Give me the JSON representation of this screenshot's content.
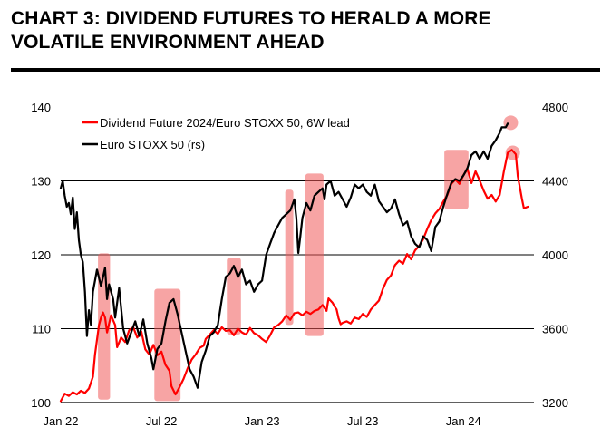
{
  "header": {
    "title_line1": "CHART 3: DIVIDEND FUTURES TO HERALD A MORE",
    "title_line2": "VOLATILE ENVIRONMENT AHEAD"
  },
  "chart_data": {
    "type": "line",
    "title": "CHART 3: DIVIDEND FUTURES TO HERALD A MORE VOLATILE ENVIRONMENT AHEAD",
    "x_tick_labels": [
      "Jan 22",
      "Jul 22",
      "Jan 23",
      "Jul 23",
      "Jan 24"
    ],
    "x_tick_dates": [
      2022.0,
      2022.5,
      2023.0,
      2023.5,
      2024.0
    ],
    "xlim": [
      2022.0,
      2024.35
    ],
    "left_axis": {
      "ylim": [
        100,
        140
      ],
      "ticks": [
        100,
        110,
        120,
        130,
        140
      ]
    },
    "right_axis": {
      "ylim": [
        3200,
        4800
      ],
      "ticks": [
        3200,
        3600,
        4000,
        4400,
        4800
      ]
    },
    "grid": "horizontal",
    "legend_position": "top-left",
    "series": [
      {
        "name": "Dividend Future 2024/Euro STOXX 50, 6W lead",
        "axis": "left",
        "color": "#ff0000",
        "points": [
          [
            2022.0,
            100.2
          ],
          [
            2022.02,
            101.2
          ],
          [
            2022.04,
            100.9
          ],
          [
            2022.06,
            101.4
          ],
          [
            2022.08,
            101.1
          ],
          [
            2022.1,
            101.6
          ],
          [
            2022.12,
            101.3
          ],
          [
            2022.14,
            101.9
          ],
          [
            2022.16,
            103.5
          ],
          [
            2022.17,
            106.5
          ],
          [
            2022.19,
            110.5
          ],
          [
            2022.2,
            111.5
          ],
          [
            2022.21,
            112.2
          ],
          [
            2022.22,
            111.5
          ],
          [
            2022.23,
            109.5
          ],
          [
            2022.25,
            111.8
          ],
          [
            2022.27,
            110.5
          ],
          [
            2022.28,
            107.5
          ],
          [
            2022.3,
            108.8
          ],
          [
            2022.32,
            108.2
          ],
          [
            2022.34,
            109.8
          ],
          [
            2022.36,
            110.2
          ],
          [
            2022.38,
            108.8
          ],
          [
            2022.4,
            109.6
          ],
          [
            2022.42,
            107.2
          ],
          [
            2022.44,
            106.5
          ],
          [
            2022.46,
            107.8
          ],
          [
            2022.48,
            106.4
          ],
          [
            2022.5,
            106.9
          ],
          [
            2022.52,
            105.1
          ],
          [
            2022.54,
            104.3
          ],
          [
            2022.55,
            102.2
          ],
          [
            2022.57,
            101.1
          ],
          [
            2022.59,
            102.1
          ],
          [
            2022.61,
            103.2
          ],
          [
            2022.63,
            104.6
          ],
          [
            2022.65,
            105.8
          ],
          [
            2022.67,
            106.5
          ],
          [
            2022.69,
            107.4
          ],
          [
            2022.71,
            107.7
          ],
          [
            2022.72,
            108.6
          ],
          [
            2022.74,
            109.2
          ],
          [
            2022.76,
            109.8
          ],
          [
            2022.78,
            109.3
          ],
          [
            2022.8,
            110.2
          ],
          [
            2022.82,
            109.7
          ],
          [
            2022.84,
            109.8
          ],
          [
            2022.86,
            109.1
          ],
          [
            2022.88,
            110.0
          ],
          [
            2022.9,
            109.5
          ],
          [
            2022.92,
            109.2
          ],
          [
            2022.94,
            110.1
          ],
          [
            2022.96,
            109.4
          ],
          [
            2022.98,
            109.1
          ],
          [
            2023.0,
            108.6
          ],
          [
            2023.02,
            108.2
          ],
          [
            2023.04,
            109.1
          ],
          [
            2023.06,
            110.2
          ],
          [
            2023.08,
            110.5
          ],
          [
            2023.1,
            111.0
          ],
          [
            2023.12,
            111.8
          ],
          [
            2023.14,
            111.2
          ],
          [
            2023.16,
            112.1
          ],
          [
            2023.18,
            112.2
          ],
          [
            2023.2,
            111.8
          ],
          [
            2023.22,
            112.3
          ],
          [
            2023.24,
            112.0
          ],
          [
            2023.26,
            112.4
          ],
          [
            2023.28,
            112.6
          ],
          [
            2023.3,
            113.2
          ],
          [
            2023.32,
            112.4
          ],
          [
            2023.33,
            114.1
          ],
          [
            2023.35,
            113.5
          ],
          [
            2023.36,
            113.0
          ],
          [
            2023.37,
            112.6
          ],
          [
            2023.38,
            111.4
          ],
          [
            2023.39,
            110.6
          ],
          [
            2023.4,
            110.8
          ],
          [
            2023.42,
            111.0
          ],
          [
            2023.44,
            110.7
          ],
          [
            2023.46,
            111.5
          ],
          [
            2023.48,
            111.3
          ],
          [
            2023.5,
            112.0
          ],
          [
            2023.52,
            111.6
          ],
          [
            2023.54,
            112.6
          ],
          [
            2023.56,
            113.2
          ],
          [
            2023.58,
            113.8
          ],
          [
            2023.6,
            115.4
          ],
          [
            2023.62,
            116.6
          ],
          [
            2023.64,
            117.2
          ],
          [
            2023.66,
            118.6
          ],
          [
            2023.68,
            119.2
          ],
          [
            2023.7,
            118.8
          ],
          [
            2023.72,
            120.1
          ],
          [
            2023.74,
            119.4
          ],
          [
            2023.76,
            120.6
          ],
          [
            2023.78,
            121.2
          ],
          [
            2023.8,
            122.1
          ],
          [
            2023.82,
            123.5
          ],
          [
            2023.84,
            124.7
          ],
          [
            2023.86,
            125.6
          ],
          [
            2023.88,
            126.2
          ],
          [
            2023.9,
            127.2
          ],
          [
            2023.92,
            128.1
          ],
          [
            2023.94,
            129.6
          ],
          [
            2023.96,
            130.2
          ],
          [
            2023.98,
            129.6
          ],
          [
            2024.0,
            130.8
          ],
          [
            2024.02,
            131.6
          ],
          [
            2024.04,
            129.7
          ],
          [
            2024.06,
            131.3
          ],
          [
            2024.08,
            130.1
          ],
          [
            2024.1,
            128.7
          ],
          [
            2024.12,
            127.6
          ],
          [
            2024.14,
            128.1
          ],
          [
            2024.16,
            127.2
          ],
          [
            2024.18,
            128.1
          ],
          [
            2024.2,
            131.2
          ],
          [
            2024.22,
            133.8
          ],
          [
            2024.24,
            134.2
          ],
          [
            2024.26,
            133.6
          ],
          [
            2024.27,
            130.6
          ],
          [
            2024.28,
            129.1
          ],
          [
            2024.29,
            127.6
          ],
          [
            2024.3,
            126.3
          ],
          [
            2024.32,
            126.5
          ]
        ]
      },
      {
        "name": "Euro STOXX 50 (rs)",
        "axis": "right",
        "color": "#000000",
        "points": [
          [
            2022.0,
            4360
          ],
          [
            2022.01,
            4400
          ],
          [
            2022.02,
            4320
          ],
          [
            2022.03,
            4260
          ],
          [
            2022.04,
            4280
          ],
          [
            2022.05,
            4220
          ],
          [
            2022.06,
            4310
          ],
          [
            2022.07,
            4140
          ],
          [
            2022.08,
            4230
          ],
          [
            2022.09,
            4080
          ],
          [
            2022.1,
            4000
          ],
          [
            2022.11,
            3960
          ],
          [
            2022.12,
            3800
          ],
          [
            2022.13,
            3560
          ],
          [
            2022.14,
            3700
          ],
          [
            2022.15,
            3620
          ],
          [
            2022.16,
            3800
          ],
          [
            2022.17,
            3860
          ],
          [
            2022.18,
            3920
          ],
          [
            2022.2,
            3830
          ],
          [
            2022.22,
            3930
          ],
          [
            2022.23,
            3760
          ],
          [
            2022.24,
            3840
          ],
          [
            2022.26,
            3760
          ],
          [
            2022.27,
            3660
          ],
          [
            2022.29,
            3820
          ],
          [
            2022.31,
            3600
          ],
          [
            2022.33,
            3520
          ],
          [
            2022.35,
            3580
          ],
          [
            2022.37,
            3640
          ],
          [
            2022.39,
            3560
          ],
          [
            2022.41,
            3650
          ],
          [
            2022.43,
            3520
          ],
          [
            2022.45,
            3440
          ],
          [
            2022.46,
            3380
          ],
          [
            2022.48,
            3490
          ],
          [
            2022.5,
            3520
          ],
          [
            2022.52,
            3640
          ],
          [
            2022.54,
            3740
          ],
          [
            2022.56,
            3760
          ],
          [
            2022.58,
            3680
          ],
          [
            2022.6,
            3580
          ],
          [
            2022.62,
            3480
          ],
          [
            2022.64,
            3380
          ],
          [
            2022.66,
            3340
          ],
          [
            2022.68,
            3280
          ],
          [
            2022.7,
            3420
          ],
          [
            2022.72,
            3480
          ],
          [
            2022.74,
            3560
          ],
          [
            2022.76,
            3580
          ],
          [
            2022.78,
            3620
          ],
          [
            2022.8,
            3760
          ],
          [
            2022.82,
            3880
          ],
          [
            2022.84,
            3900
          ],
          [
            2022.86,
            3940
          ],
          [
            2022.88,
            3880
          ],
          [
            2022.9,
            3920
          ],
          [
            2022.92,
            3840
          ],
          [
            2022.94,
            3860
          ],
          [
            2022.96,
            3800
          ],
          [
            2022.98,
            3840
          ],
          [
            2023.0,
            3860
          ],
          [
            2023.02,
            4000
          ],
          [
            2023.04,
            4060
          ],
          [
            2023.06,
            4120
          ],
          [
            2023.08,
            4160
          ],
          [
            2023.1,
            4200
          ],
          [
            2023.12,
            4220
          ],
          [
            2023.14,
            4240
          ],
          [
            2023.16,
            4300
          ],
          [
            2023.17,
            4200
          ],
          [
            2023.18,
            4010
          ],
          [
            2023.19,
            4100
          ],
          [
            2023.2,
            4200
          ],
          [
            2023.22,
            4280
          ],
          [
            2023.24,
            4240
          ],
          [
            2023.26,
            4320
          ],
          [
            2023.28,
            4340
          ],
          [
            2023.3,
            4360
          ],
          [
            2023.31,
            4300
          ],
          [
            2023.32,
            4380
          ],
          [
            2023.34,
            4400
          ],
          [
            2023.36,
            4320
          ],
          [
            2023.38,
            4340
          ],
          [
            2023.4,
            4300
          ],
          [
            2023.42,
            4260
          ],
          [
            2023.44,
            4310
          ],
          [
            2023.46,
            4380
          ],
          [
            2023.48,
            4360
          ],
          [
            2023.5,
            4380
          ],
          [
            2023.52,
            4340
          ],
          [
            2023.54,
            4320
          ],
          [
            2023.56,
            4380
          ],
          [
            2023.58,
            4290
          ],
          [
            2023.6,
            4260
          ],
          [
            2023.62,
            4230
          ],
          [
            2023.64,
            4250
          ],
          [
            2023.66,
            4300
          ],
          [
            2023.68,
            4220
          ],
          [
            2023.7,
            4160
          ],
          [
            2023.72,
            4180
          ],
          [
            2023.74,
            4100
          ],
          [
            2023.76,
            4060
          ],
          [
            2023.78,
            4040
          ],
          [
            2023.8,
            4100
          ],
          [
            2023.82,
            4080
          ],
          [
            2023.84,
            4020
          ],
          [
            2023.86,
            4150
          ],
          [
            2023.88,
            4180
          ],
          [
            2023.9,
            4260
          ],
          [
            2023.92,
            4330
          ],
          [
            2023.94,
            4390
          ],
          [
            2023.96,
            4410
          ],
          [
            2023.98,
            4400
          ],
          [
            2024.0,
            4430
          ],
          [
            2024.02,
            4470
          ],
          [
            2024.04,
            4540
          ],
          [
            2024.06,
            4560
          ],
          [
            2024.08,
            4520
          ],
          [
            2024.1,
            4560
          ],
          [
            2024.12,
            4520
          ],
          [
            2024.14,
            4590
          ],
          [
            2024.16,
            4620
          ],
          [
            2024.18,
            4660
          ],
          [
            2024.19,
            4690
          ],
          [
            2024.21,
            4690
          ],
          [
            2024.22,
            4710
          ]
        ]
      }
    ],
    "highlight_boxes_left_axis": [
      {
        "x0": 2022.185,
        "x1": 2022.245,
        "y0": 100.4,
        "y1": 120.2
      },
      {
        "x0": 2022.465,
        "x1": 2022.595,
        "y0": 100.2,
        "y1": 115.4
      },
      {
        "x0": 2022.825,
        "x1": 2022.895,
        "y0": 109.2,
        "y1": 119.6
      },
      {
        "x0": 2023.115,
        "x1": 2023.155,
        "y0": 110.5,
        "y1": 128.8
      },
      {
        "x0": 2023.215,
        "x1": 2023.305,
        "y0": 109.0,
        "y1": 131.0
      },
      {
        "x0": 2023.905,
        "x1": 2024.025,
        "y0": 126.2,
        "y1": 134.2
      }
    ],
    "highlight_circles": [
      {
        "axis": "right",
        "x": 2024.235,
        "y": 4715
      },
      {
        "axis": "left",
        "x": 2024.245,
        "y": 133.8
      }
    ]
  }
}
